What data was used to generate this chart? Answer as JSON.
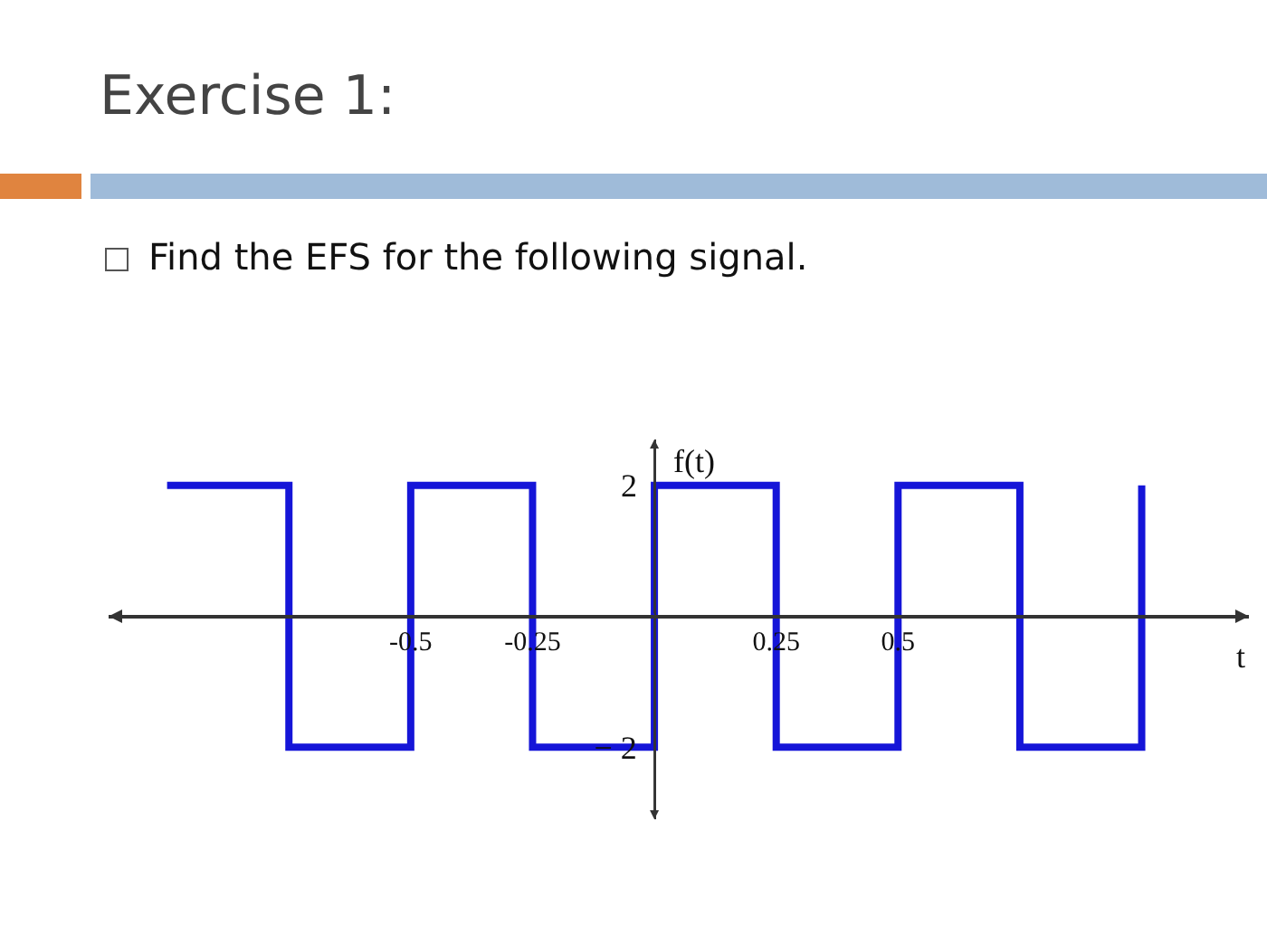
{
  "chart_data": {
    "type": "step",
    "title": "Exercise 1:",
    "subtitle": "Find the EFS for the following signal.",
    "xlabel": "t",
    "ylabel": "f(t)",
    "x": [
      -1,
      -0.75,
      -0.5,
      -0.25,
      0,
      0.25,
      0.5,
      0.75,
      1
    ],
    "series": [
      {
        "color": "#1515d8",
        "values": [
          2,
          -2,
          2,
          -2,
          2,
          -2,
          2,
          -2,
          2
        ]
      }
    ],
    "xlim": [
      -1.12,
      1.22
    ],
    "xticks": [
      -0.5,
      -0.25,
      0.25,
      0.5
    ],
    "ylim": [
      -3.1,
      2.7
    ],
    "yticks": [
      {
        "value": -2,
        "label": "− 2"
      },
      2
    ],
    "grid": false,
    "marker": "none",
    "line_style": "solid"
  }
}
